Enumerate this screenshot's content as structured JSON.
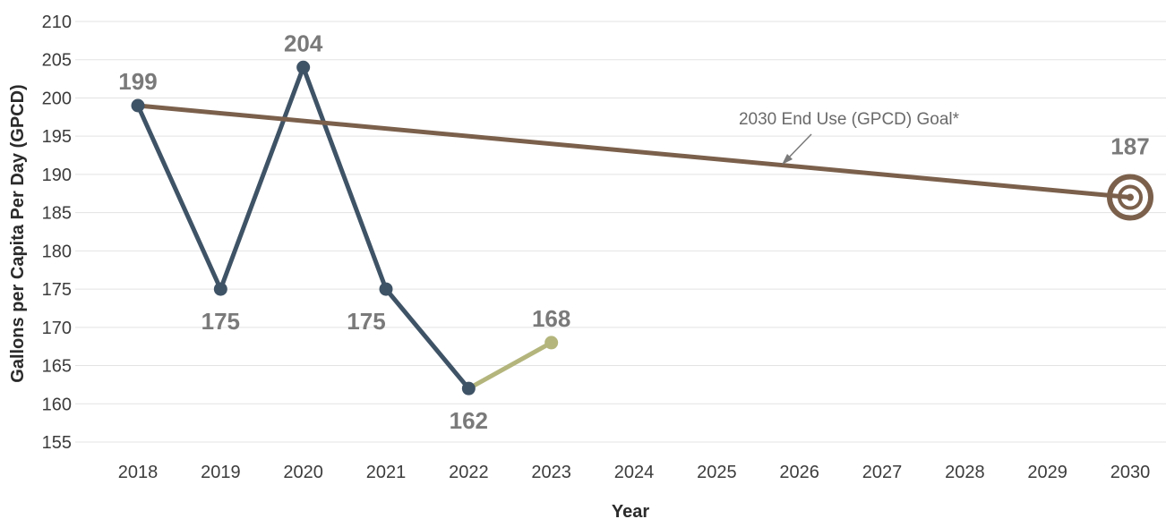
{
  "chart_data": {
    "type": "line",
    "xlabel": "Year",
    "ylabel": "Gallons per Capita Per Day (GPCD)",
    "x_ticks": [
      "2018",
      "2019",
      "2020",
      "2021",
      "2022",
      "2023",
      "2024",
      "2025",
      "2026",
      "2027",
      "2028",
      "2029",
      "2030"
    ],
    "y_ticks": [
      155,
      160,
      165,
      170,
      175,
      180,
      185,
      190,
      195,
      200,
      205,
      210
    ],
    "xlim": [
      2018,
      2030
    ],
    "ylim": [
      155,
      210
    ],
    "grid": true,
    "series": [
      {
        "name": "",
        "color": "#3f5366",
        "points": [
          {
            "x": 2018,
            "y": 199,
            "label": "199"
          },
          {
            "x": 2019,
            "y": 175,
            "label": "175"
          },
          {
            "x": 2020,
            "y": 204,
            "label": "204"
          },
          {
            "x": 2021,
            "y": 175,
            "label": "175"
          },
          {
            "x": 2022,
            "y": 162,
            "label": "162"
          }
        ]
      },
      {
        "name": "",
        "color": "#b3b57c",
        "points": [
          {
            "x": 2022,
            "y": 162,
            "label": ""
          },
          {
            "x": 2023,
            "y": 168,
            "label": "168"
          }
        ]
      },
      {
        "name": "2030 End Use (GPCD) Goal*",
        "color": "#7b604c",
        "points": [
          {
            "x": 2018,
            "y": 199,
            "label": ""
          },
          {
            "x": 2030,
            "y": 187,
            "label": "187"
          }
        ]
      }
    ],
    "annotation": "2030 End Use (GPCD) Goal*",
    "target_icon": "target-icon"
  }
}
